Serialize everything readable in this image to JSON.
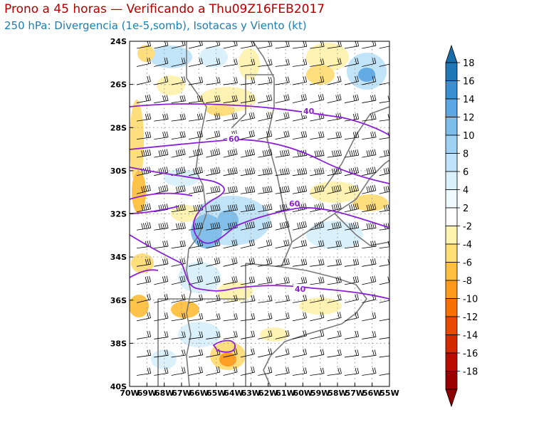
{
  "header": {
    "title": "Prono a 45 horas — Verificando a Thu09Z16FEB2017",
    "subtitle": "250 hPa: Divergencia (1e-5,somb), Isotacas y Viento (kt)"
  },
  "map": {
    "lat_labels": [
      "24S",
      "26S",
      "28S",
      "30S",
      "32S",
      "34S",
      "36S",
      "38S",
      "40S"
    ],
    "lon_labels": [
      "70W",
      "69W",
      "68W",
      "67W",
      "66W",
      "65W",
      "64W",
      "63W",
      "62W",
      "61W",
      "60W",
      "59W",
      "58W",
      "57W",
      "56W",
      "55W"
    ],
    "isotach_labels": [
      "40",
      "60",
      "60",
      "40"
    ]
  },
  "colorbar": {
    "labels": [
      "18",
      "16",
      "14",
      "12",
      "10",
      "8",
      "6",
      "4",
      "2",
      "-2",
      "-4",
      "-6",
      "-8",
      "-10",
      "-12",
      "-14",
      "-16",
      "-18"
    ],
    "colors": [
      "#1f77b4",
      "#3a8fd0",
      "#5aa7e3",
      "#7cbdea",
      "#9fd1f2",
      "#bfe3f8",
      "#d9f1fb",
      "#eefaff",
      "#ffffff",
      "#fff3b0",
      "#ffdd77",
      "#ffc040",
      "#ff9a1a",
      "#f77100",
      "#e84800",
      "#d42a00",
      "#b80d00",
      "#9a0000"
    ],
    "top_arrow_color": "#1a6ea8",
    "bottom_arrow_color": "#8b0000"
  },
  "colors": {
    "isotach": "#8a1fd6",
    "border": "#7a7a7a",
    "grid": "#9a9a9a"
  }
}
